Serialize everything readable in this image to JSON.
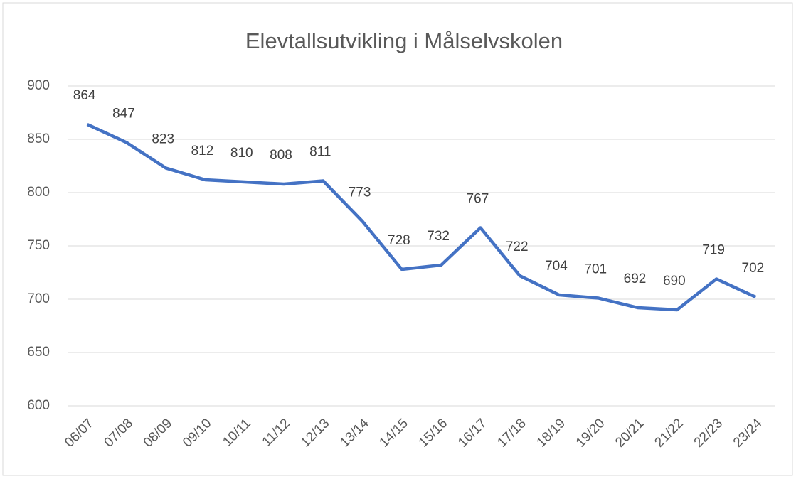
{
  "chart_data": {
    "type": "line",
    "title": "Elevtallsutvikling i Målselvskolen",
    "categories": [
      "06/07",
      "07/08",
      "08/09",
      "09/10",
      "10/11",
      "11/12",
      "12/13",
      "13/14",
      "14/15",
      "15/16",
      "16/17",
      "17/18",
      "18/19",
      "19/20",
      "20/21",
      "21/22",
      "22/23",
      "23/24"
    ],
    "series": [
      {
        "color": "#4472c4",
        "values": [
          864,
          847,
          823,
          812,
          810,
          808,
          811,
          773,
          728,
          732,
          767,
          722,
          704,
          701,
          692,
          690,
          719,
          702
        ]
      }
    ],
    "ylim": [
      600,
      900
    ],
    "yticks": [
      600,
      650,
      700,
      750,
      800,
      850,
      900
    ],
    "grid": true,
    "data_labels": true
  }
}
